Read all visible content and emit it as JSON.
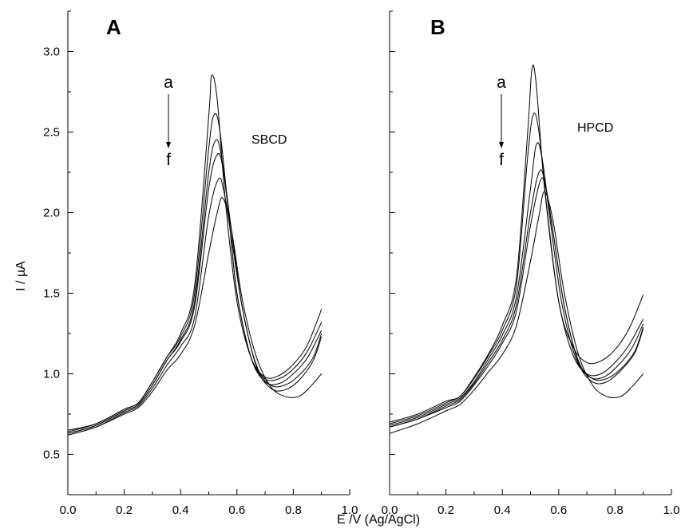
{
  "ylabel": "I / µA",
  "xlabel": "E /V (Ag/AgCl)",
  "xticks": [
    "0.0",
    "0.2",
    "0.4",
    "0.6",
    "0.8",
    "1.0"
  ],
  "yticks": [
    "0.5",
    "1.0",
    "1.5",
    "2.0",
    "2.5",
    "3.0"
  ],
  "chart_data": [
    {
      "type": "line",
      "panel_label": "A",
      "annotation": "SBCD",
      "arrow_start_label": "a",
      "arrow_end_label": "f",
      "xlabel": "E /V (Ag/AgCl)",
      "ylabel": "I / µA",
      "xlim": [
        0.0,
        1.0
      ],
      "ylim": [
        0.25,
        3.25
      ],
      "series": [
        {
          "points": [
            [
              0.0,
              0.65
            ],
            [
              0.1,
              0.69
            ],
            [
              0.2,
              0.78
            ],
            [
              0.25,
              0.82
            ],
            [
              0.3,
              0.95
            ],
            [
              0.35,
              1.1
            ],
            [
              0.4,
              1.25
            ],
            [
              0.45,
              1.55
            ],
            [
              0.5,
              2.6
            ],
            [
              0.51,
              2.85
            ],
            [
              0.53,
              2.7
            ],
            [
              0.56,
              2.05
            ],
            [
              0.6,
              1.45
            ],
            [
              0.65,
              1.1
            ],
            [
              0.7,
              0.98
            ],
            [
              0.75,
              0.99
            ],
            [
              0.8,
              1.06
            ],
            [
              0.85,
              1.18
            ],
            [
              0.9,
              1.4
            ]
          ]
        },
        {
          "points": [
            [
              0.0,
              0.64
            ],
            [
              0.1,
              0.69
            ],
            [
              0.2,
              0.78
            ],
            [
              0.25,
              0.82
            ],
            [
              0.3,
              0.95
            ],
            [
              0.35,
              1.1
            ],
            [
              0.4,
              1.23
            ],
            [
              0.45,
              1.5
            ],
            [
              0.5,
              2.4
            ],
            [
              0.52,
              2.61
            ],
            [
              0.54,
              2.5
            ],
            [
              0.57,
              2.0
            ],
            [
              0.6,
              1.5
            ],
            [
              0.65,
              1.1
            ],
            [
              0.7,
              0.97
            ],
            [
              0.75,
              0.97
            ],
            [
              0.8,
              1.03
            ],
            [
              0.85,
              1.14
            ],
            [
              0.9,
              1.32
            ]
          ]
        },
        {
          "points": [
            [
              0.0,
              0.63
            ],
            [
              0.1,
              0.68
            ],
            [
              0.2,
              0.77
            ],
            [
              0.25,
              0.81
            ],
            [
              0.3,
              0.93
            ],
            [
              0.35,
              1.08
            ],
            [
              0.4,
              1.21
            ],
            [
              0.45,
              1.45
            ],
            [
              0.5,
              2.25
            ],
            [
              0.525,
              2.45
            ],
            [
              0.545,
              2.35
            ],
            [
              0.57,
              2.0
            ],
            [
              0.6,
              1.5
            ],
            [
              0.65,
              1.1
            ],
            [
              0.7,
              0.95
            ],
            [
              0.75,
              0.94
            ],
            [
              0.8,
              1.0
            ],
            [
              0.85,
              1.1
            ],
            [
              0.9,
              1.27
            ]
          ]
        },
        {
          "points": [
            [
              0.0,
              0.63
            ],
            [
              0.1,
              0.68
            ],
            [
              0.2,
              0.77
            ],
            [
              0.25,
              0.81
            ],
            [
              0.3,
              0.93
            ],
            [
              0.35,
              1.08
            ],
            [
              0.4,
              1.2
            ],
            [
              0.45,
              1.42
            ],
            [
              0.5,
              2.15
            ],
            [
              0.53,
              2.36
            ],
            [
              0.55,
              2.28
            ],
            [
              0.58,
              1.9
            ],
            [
              0.62,
              1.4
            ],
            [
              0.67,
              1.05
            ],
            [
              0.72,
              0.93
            ],
            [
              0.77,
              0.93
            ],
            [
              0.82,
              0.99
            ],
            [
              0.87,
              1.1
            ],
            [
              0.9,
              1.25
            ]
          ]
        },
        {
          "points": [
            [
              0.0,
              0.62
            ],
            [
              0.1,
              0.67
            ],
            [
              0.2,
              0.76
            ],
            [
              0.25,
              0.8
            ],
            [
              0.3,
              0.91
            ],
            [
              0.35,
              1.05
            ],
            [
              0.4,
              1.17
            ],
            [
              0.45,
              1.35
            ],
            [
              0.5,
              1.98
            ],
            [
              0.535,
              2.21
            ],
            [
              0.555,
              2.12
            ],
            [
              0.58,
              1.85
            ],
            [
              0.62,
              1.4
            ],
            [
              0.67,
              1.04
            ],
            [
              0.72,
              0.91
            ],
            [
              0.77,
              0.9
            ],
            [
              0.82,
              0.96
            ],
            [
              0.87,
              1.08
            ],
            [
              0.9,
              1.23
            ]
          ]
        },
        {
          "points": [
            [
              0.0,
              0.62
            ],
            [
              0.1,
              0.67
            ],
            [
              0.2,
              0.75
            ],
            [
              0.25,
              0.79
            ],
            [
              0.3,
              0.89
            ],
            [
              0.35,
              1.02
            ],
            [
              0.4,
              1.12
            ],
            [
              0.45,
              1.3
            ],
            [
              0.5,
              1.75
            ],
            [
              0.53,
              2.0
            ],
            [
              0.55,
              2.09
            ],
            [
              0.58,
              1.9
            ],
            [
              0.62,
              1.45
            ],
            [
              0.67,
              1.1
            ],
            [
              0.72,
              0.92
            ],
            [
              0.77,
              0.86
            ],
            [
              0.82,
              0.86
            ],
            [
              0.86,
              0.92
            ],
            [
              0.9,
              1.0
            ]
          ]
        }
      ]
    },
    {
      "type": "line",
      "panel_label": "B",
      "annotation": "HPCD",
      "arrow_start_label": "a",
      "arrow_end_label": "f",
      "xlabel": "E /V (Ag/AgCl)",
      "ylabel": "I / µA",
      "xlim": [
        0.0,
        1.0
      ],
      "ylim": [
        0.25,
        3.25
      ],
      "series": [
        {
          "points": [
            [
              0.0,
              0.7
            ],
            [
              0.1,
              0.75
            ],
            [
              0.2,
              0.83
            ],
            [
              0.25,
              0.86
            ],
            [
              0.3,
              0.98
            ],
            [
              0.35,
              1.12
            ],
            [
              0.4,
              1.3
            ],
            [
              0.45,
              1.6
            ],
            [
              0.49,
              2.5
            ],
            [
              0.505,
              2.89
            ],
            [
              0.52,
              2.8
            ],
            [
              0.55,
              2.15
            ],
            [
              0.6,
              1.45
            ],
            [
              0.65,
              1.17
            ],
            [
              0.7,
              1.07
            ],
            [
              0.75,
              1.08
            ],
            [
              0.8,
              1.15
            ],
            [
              0.85,
              1.28
            ],
            [
              0.9,
              1.49
            ]
          ]
        },
        {
          "points": [
            [
              0.0,
              0.69
            ],
            [
              0.1,
              0.74
            ],
            [
              0.2,
              0.82
            ],
            [
              0.25,
              0.86
            ],
            [
              0.3,
              0.97
            ],
            [
              0.35,
              1.11
            ],
            [
              0.4,
              1.27
            ],
            [
              0.45,
              1.55
            ],
            [
              0.49,
              2.35
            ],
            [
              0.51,
              2.61
            ],
            [
              0.53,
              2.5
            ],
            [
              0.56,
              2.0
            ],
            [
              0.6,
              1.45
            ],
            [
              0.65,
              1.12
            ],
            [
              0.7,
              1.0
            ],
            [
              0.75,
              1.0
            ],
            [
              0.8,
              1.07
            ],
            [
              0.85,
              1.18
            ],
            [
              0.9,
              1.34
            ]
          ]
        },
        {
          "points": [
            [
              0.0,
              0.68
            ],
            [
              0.1,
              0.73
            ],
            [
              0.2,
              0.81
            ],
            [
              0.25,
              0.85
            ],
            [
              0.3,
              0.95
            ],
            [
              0.35,
              1.09
            ],
            [
              0.4,
              1.24
            ],
            [
              0.45,
              1.48
            ],
            [
              0.5,
              2.15
            ],
            [
              0.52,
              2.42
            ],
            [
              0.54,
              2.35
            ],
            [
              0.57,
              1.95
            ],
            [
              0.61,
              1.45
            ],
            [
              0.66,
              1.1
            ],
            [
              0.71,
              0.98
            ],
            [
              0.76,
              0.98
            ],
            [
              0.81,
              1.05
            ],
            [
              0.86,
              1.16
            ],
            [
              0.9,
              1.31
            ]
          ]
        },
        {
          "points": [
            [
              0.0,
              0.67
            ],
            [
              0.1,
              0.72
            ],
            [
              0.2,
              0.8
            ],
            [
              0.25,
              0.84
            ],
            [
              0.3,
              0.94
            ],
            [
              0.35,
              1.07
            ],
            [
              0.4,
              1.21
            ],
            [
              0.45,
              1.43
            ],
            [
              0.5,
              2.0
            ],
            [
              0.53,
              2.25
            ],
            [
              0.55,
              2.2
            ],
            [
              0.58,
              1.88
            ],
            [
              0.62,
              1.42
            ],
            [
              0.67,
              1.08
            ],
            [
              0.72,
              0.97
            ],
            [
              0.77,
              0.97
            ],
            [
              0.82,
              1.03
            ],
            [
              0.87,
              1.14
            ],
            [
              0.9,
              1.29
            ]
          ]
        },
        {
          "points": [
            [
              0.0,
              0.67
            ],
            [
              0.1,
              0.72
            ],
            [
              0.2,
              0.79
            ],
            [
              0.25,
              0.83
            ],
            [
              0.3,
              0.93
            ],
            [
              0.35,
              1.05
            ],
            [
              0.4,
              1.19
            ],
            [
              0.45,
              1.39
            ],
            [
              0.5,
              1.92
            ],
            [
              0.535,
              2.2
            ],
            [
              0.555,
              2.15
            ],
            [
              0.58,
              1.88
            ],
            [
              0.62,
              1.42
            ],
            [
              0.67,
              1.07
            ],
            [
              0.72,
              0.95
            ],
            [
              0.77,
              0.95
            ],
            [
              0.82,
              1.02
            ],
            [
              0.87,
              1.13
            ],
            [
              0.9,
              1.28
            ]
          ]
        },
        {
          "points": [
            [
              0.0,
              0.63
            ],
            [
              0.1,
              0.69
            ],
            [
              0.2,
              0.77
            ],
            [
              0.25,
              0.81
            ],
            [
              0.3,
              0.9
            ],
            [
              0.35,
              1.01
            ],
            [
              0.4,
              1.12
            ],
            [
              0.45,
              1.3
            ],
            [
              0.5,
              1.7
            ],
            [
              0.53,
              1.98
            ],
            [
              0.55,
              2.13
            ],
            [
              0.58,
              1.95
            ],
            [
              0.62,
              1.5
            ],
            [
              0.67,
              1.12
            ],
            [
              0.72,
              0.93
            ],
            [
              0.77,
              0.86
            ],
            [
              0.82,
              0.86
            ],
            [
              0.86,
              0.92
            ],
            [
              0.9,
              1.0
            ]
          ]
        }
      ]
    }
  ]
}
